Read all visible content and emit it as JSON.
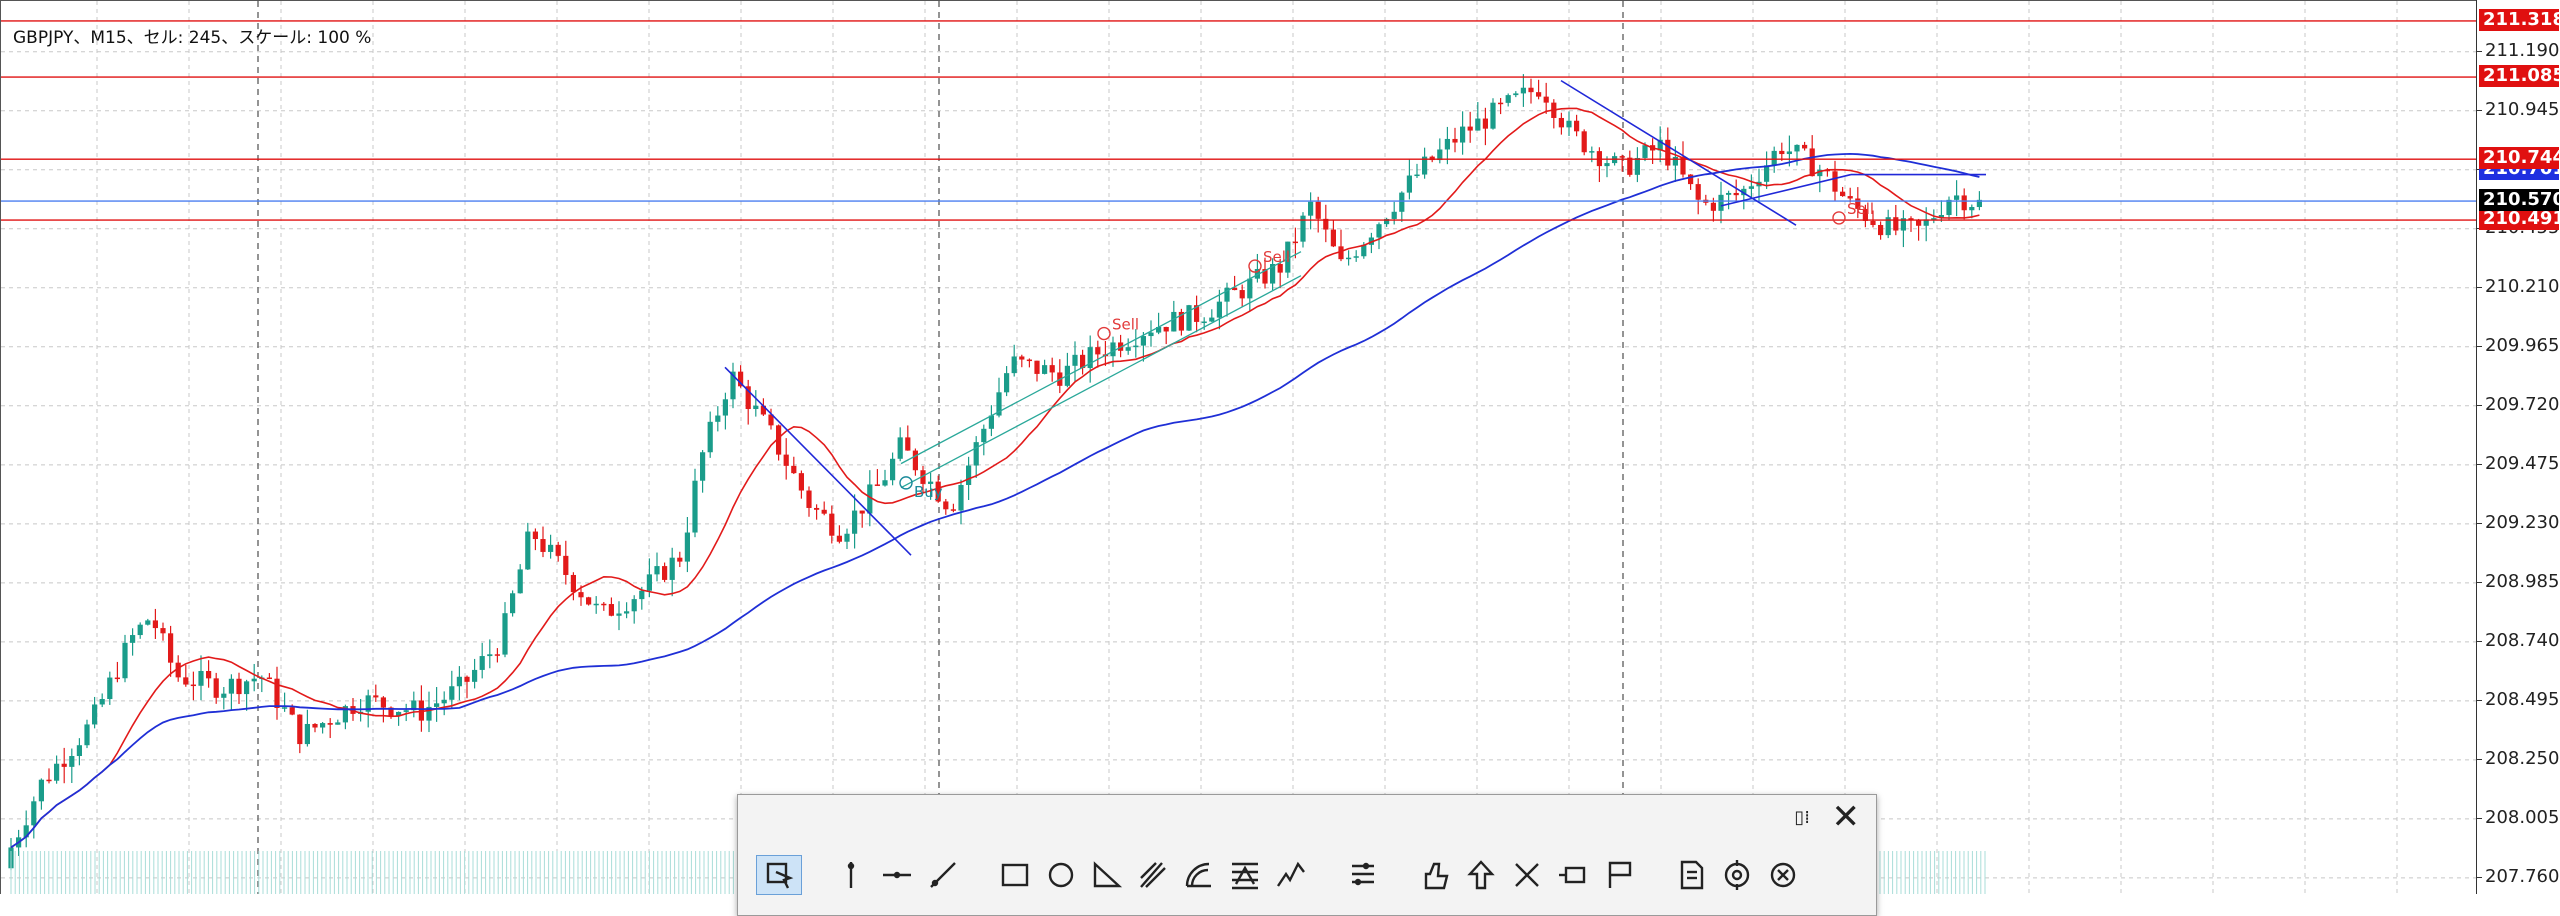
{
  "chart": {
    "info": "GBPJPY、M15、セル: 245、スケール: 100 %",
    "symbol": "GBPJPY",
    "timeframe": "M15",
    "price_range": [
      207.7,
      211.33
    ],
    "price_ticks": [
      "211.190",
      "210.945",
      "210.700",
      "210.455",
      "210.210",
      "209.965",
      "209.720",
      "209.475",
      "209.230",
      "208.985",
      "208.740",
      "208.495",
      "208.250",
      "208.005",
      "207.760"
    ],
    "horizontal_levels": [
      {
        "price": 211.318,
        "label": "211.318",
        "color": "#e01010"
      },
      {
        "price": 211.085,
        "label": "211.085",
        "color": "#e01010"
      },
      {
        "price": 210.744,
        "label": "210.744",
        "color": "#e01010"
      },
      {
        "price": 210.491,
        "label": "210.491",
        "color": "#e01010"
      },
      {
        "price": 210.57,
        "label": "210.570",
        "color": "#4a7ef0"
      }
    ],
    "current_price": {
      "price": 210.57,
      "label": "210.570",
      "bg": "#000000"
    },
    "extra_tag": {
      "price": 210.7,
      "label": "210.701",
      "bg": "#1e2fe0"
    },
    "colors": {
      "bull": "#1a9c8a",
      "bear": "#e21a1a",
      "ma_fast": "#e21a1a",
      "ma_slow": "#1f2fd6",
      "grid": "#c8c8c8",
      "trend_blue": "#2028d8",
      "channel": "#2aa89a"
    },
    "trade_marks": [
      "Sell",
      "Sell",
      "Sell",
      "Buy"
    ]
  },
  "toolbar": {
    "pin_icon": "pin-icon",
    "close_label": "✕",
    "tools": [
      {
        "name": "select-cursor-icon",
        "group": 1
      },
      {
        "name": "vertical-line-icon",
        "group": 2
      },
      {
        "name": "horizontal-line-icon",
        "group": 2
      },
      {
        "name": "trend-line-icon",
        "group": 2
      },
      {
        "name": "rectangle-icon",
        "group": 3
      },
      {
        "name": "ellipse-icon",
        "group": 3
      },
      {
        "name": "triangle-icon",
        "group": 3
      },
      {
        "name": "pitchfork-icon",
        "group": 3
      },
      {
        "name": "fibonacci-arc-icon",
        "group": 3
      },
      {
        "name": "fibonacci-fan-icon",
        "group": 3
      },
      {
        "name": "elliott-wave-icon",
        "group": 3
      },
      {
        "name": "fibonacci-levels-icon",
        "group": 4
      },
      {
        "name": "thumbs-up-icon",
        "group": 5
      },
      {
        "name": "arrow-up-icon",
        "group": 5
      },
      {
        "name": "cross-icon",
        "group": 5
      },
      {
        "name": "price-label-icon",
        "group": 5
      },
      {
        "name": "flag-icon",
        "group": 5
      },
      {
        "name": "document-icon",
        "group": 6
      },
      {
        "name": "target-icon",
        "group": 6
      },
      {
        "name": "cancel-circle-icon",
        "group": 6
      }
    ]
  }
}
